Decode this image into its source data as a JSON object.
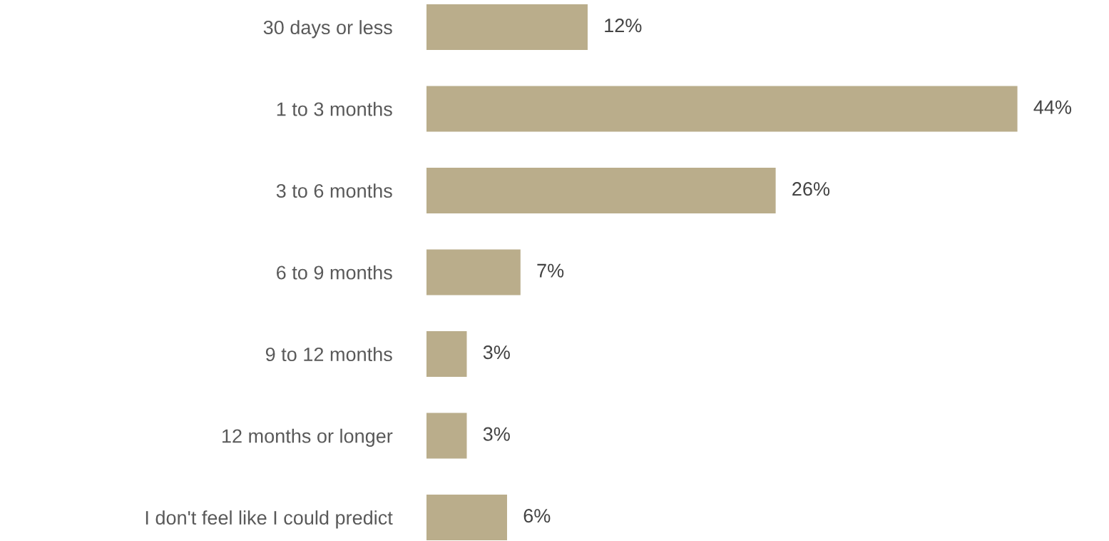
{
  "chart_data": {
    "type": "bar",
    "orientation": "horizontal",
    "categories": [
      "30 days or less",
      "1 to 3 months",
      "3 to 6 months",
      "6 to 9 months",
      "9 to 12 months",
      "12 months or longer",
      "I don't feel like I could predict"
    ],
    "values": [
      12,
      44,
      26,
      7,
      3,
      3,
      6
    ],
    "value_labels": [
      "12%",
      "44%",
      "26%",
      "7%",
      "3%",
      "3%",
      "6%"
    ],
    "color": "#baad8b",
    "grid": false,
    "legend": false
  }
}
